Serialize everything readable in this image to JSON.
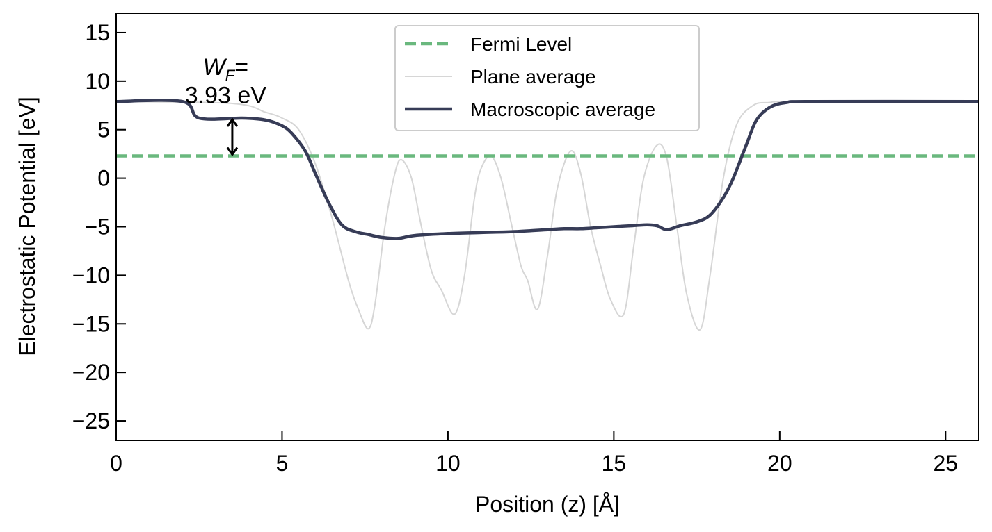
{
  "chart_data": {
    "type": "line",
    "title": "",
    "xlabel": "Position (z) [Å]",
    "ylabel": "Electrostatic Potential [eV]",
    "xlim": [
      0,
      26
    ],
    "ylim": [
      -27,
      17
    ],
    "xticks": [
      0,
      5,
      10,
      15,
      20,
      25
    ],
    "xtick_labels": [
      "0",
      "5",
      "10",
      "15",
      "20",
      "25"
    ],
    "yticks": [
      -25,
      -20,
      -15,
      -10,
      -5,
      0,
      5,
      10,
      15
    ],
    "ytick_labels": [
      "−25",
      "−20",
      "−15",
      "−10",
      "−5",
      "0",
      "5",
      "10",
      "15"
    ],
    "grid": false,
    "legend": {
      "position": "top-center"
    },
    "series": [
      {
        "name": "Fermi Level",
        "style": "dashed",
        "color": "#6ab87e",
        "x": [
          0,
          26
        ],
        "y": [
          2.3,
          2.3
        ]
      },
      {
        "name": "Plane average",
        "style": "solid",
        "color": "#d6d6d6",
        "x": [
          0,
          3.5,
          4.5,
          5.0,
          5.5,
          6.0,
          6.5,
          7.0,
          7.3,
          7.6,
          7.8,
          8.1,
          8.4,
          8.6,
          8.9,
          9.2,
          9.5,
          9.8,
          10.2,
          10.5,
          10.8,
          11.0,
          11.3,
          11.6,
          11.9,
          12.2,
          12.4,
          12.7,
          13.0,
          13.3,
          13.7,
          14.0,
          14.3,
          14.6,
          14.9,
          15.3,
          15.6,
          15.9,
          16.3,
          16.6,
          16.9,
          17.2,
          17.6,
          17.9,
          18.3,
          18.7,
          19.2,
          19.7,
          20.5,
          26
        ],
        "y": [
          7.9,
          7.7,
          6.8,
          6.2,
          5.0,
          1.5,
          -4.0,
          -10.5,
          -13.5,
          -15.5,
          -13.0,
          -5.0,
          0.5,
          1.9,
          0.0,
          -5.0,
          -9.5,
          -11.5,
          -14.0,
          -10.0,
          -2.0,
          1.0,
          2.3,
          0.0,
          -4.5,
          -9.0,
          -10.5,
          -13.5,
          -8.0,
          -1.0,
          2.8,
          0.5,
          -5.0,
          -9.0,
          -12.5,
          -14.0,
          -7.0,
          0.0,
          3.4,
          2.0,
          -5.0,
          -12.0,
          -15.6,
          -10.0,
          0.0,
          5.5,
          7.5,
          7.8,
          7.9,
          7.9
        ]
      },
      {
        "name": "Macroscopic average",
        "style": "solid",
        "color": "#373c57",
        "x": [
          0,
          2.0,
          2.5,
          3.8,
          4.5,
          5.0,
          5.3,
          5.7,
          6.0,
          6.4,
          6.8,
          7.2,
          7.6,
          8.0,
          8.5,
          9.0,
          10.0,
          11.0,
          12.0,
          13.0,
          13.5,
          14.0,
          14.5,
          15.0,
          15.5,
          16.0,
          16.3,
          16.6,
          17.0,
          17.5,
          17.9,
          18.3,
          18.6,
          19.0,
          19.3,
          19.7,
          20.2,
          21.0,
          26
        ],
        "y": [
          7.9,
          7.9,
          6.2,
          6.2,
          6.0,
          5.4,
          4.6,
          2.8,
          0.5,
          -2.5,
          -4.8,
          -5.5,
          -5.8,
          -6.1,
          -6.2,
          -5.9,
          -5.7,
          -5.6,
          -5.5,
          -5.3,
          -5.2,
          -5.2,
          -5.1,
          -5.0,
          -4.9,
          -4.8,
          -4.9,
          -5.3,
          -4.9,
          -4.5,
          -3.8,
          -2.0,
          0.0,
          3.5,
          6.0,
          7.3,
          7.8,
          7.9,
          7.9
        ]
      }
    ],
    "annotations": [
      {
        "type": "text",
        "text_main": "W",
        "text_sub": "F",
        "text_suffix": "=",
        "x": 3.3,
        "y": 11.5
      },
      {
        "type": "text",
        "text": "3.93 eV",
        "x": 3.3,
        "y": 8.6
      },
      {
        "type": "double-arrow",
        "x": 3.5,
        "y_from": 2.3,
        "y_to": 6.2
      }
    ]
  }
}
